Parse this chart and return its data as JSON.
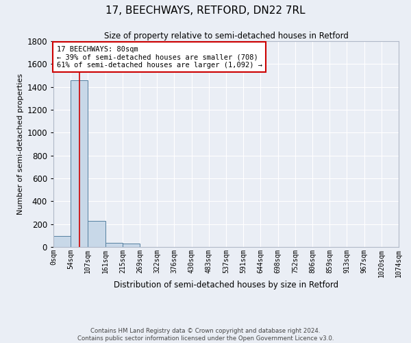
{
  "title": "17, BEECHWAYS, RETFORD, DN22 7RL",
  "subtitle": "Size of property relative to semi-detached houses in Retford",
  "xlabel": "Distribution of semi-detached houses by size in Retford",
  "ylabel": "Number of semi-detached properties",
  "footnote1": "Contains HM Land Registry data © Crown copyright and database right 2024.",
  "footnote2": "Contains public sector information licensed under the Open Government Licence v3.0.",
  "annotation_title": "17 BEECHWAYS: 80sqm",
  "annotation_line1": "← 39% of semi-detached houses are smaller (708)",
  "annotation_line2": "61% of semi-detached houses are larger (1,092) →",
  "property_size": 80,
  "bin_edges": [
    0,
    54,
    107,
    161,
    215,
    269,
    322,
    376,
    430,
    483,
    537,
    591,
    644,
    698,
    752,
    806,
    859,
    913,
    967,
    1020,
    1074
  ],
  "bin_labels": [
    "0sqm",
    "54sqm",
    "107sqm",
    "161sqm",
    "215sqm",
    "269sqm",
    "322sqm",
    "376sqm",
    "430sqm",
    "483sqm",
    "537sqm",
    "591sqm",
    "644sqm",
    "698sqm",
    "752sqm",
    "806sqm",
    "859sqm",
    "913sqm",
    "967sqm",
    "1020sqm",
    "1074sqm"
  ],
  "counts": [
    95,
    1460,
    230,
    38,
    28,
    0,
    0,
    0,
    0,
    0,
    0,
    0,
    0,
    0,
    0,
    0,
    0,
    0,
    0,
    0
  ],
  "bar_color": "#c8d8e8",
  "bar_edge_color": "#5580a0",
  "redline_color": "#cc0000",
  "annotation_box_color": "#cc0000",
  "background_color": "#eaeef5",
  "grid_color": "#ffffff",
  "ylim": [
    0,
    1800
  ],
  "yticks": [
    0,
    200,
    400,
    600,
    800,
    1000,
    1200,
    1400,
    1600,
    1800
  ]
}
